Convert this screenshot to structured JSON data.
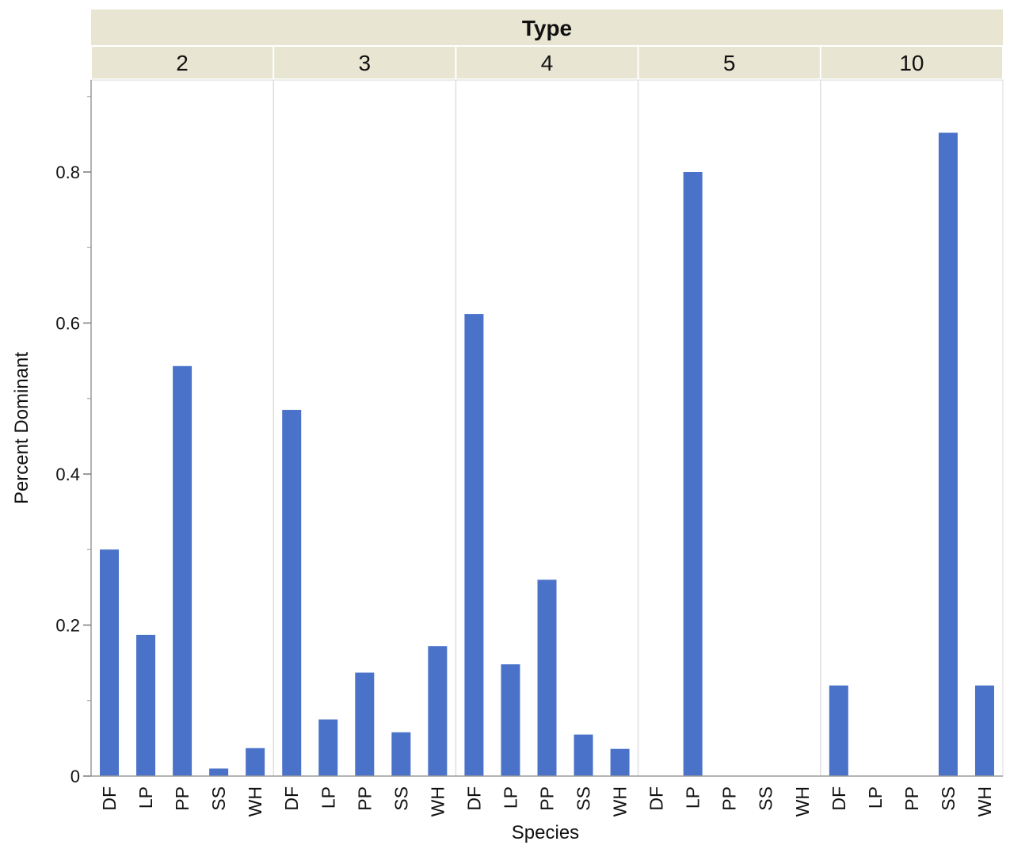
{
  "chart_data": {
    "type": "bar",
    "group_title": "Type",
    "xlabel": "Species",
    "ylabel": "Percent Dominant",
    "ylim": [
      0,
      0.9
    ],
    "yticks": [
      "0",
      "0.2",
      "0.4",
      "0.6",
      "0.8"
    ],
    "yticks_values": [
      0,
      0.2,
      0.4,
      0.6,
      0.8
    ],
    "categories": [
      "DF",
      "LP",
      "PP",
      "SS",
      "WH"
    ],
    "bar_color": "#4a72c8",
    "header_color": "#e8e5d2",
    "panels": [
      {
        "label": "2",
        "values": [
          0.3,
          0.187,
          0.543,
          0.01,
          0.037
        ]
      },
      {
        "label": "3",
        "values": [
          0.485,
          0.075,
          0.137,
          0.058,
          0.172
        ]
      },
      {
        "label": "4",
        "values": [
          0.612,
          0.148,
          0.26,
          0.055,
          0.036
        ]
      },
      {
        "label": "5",
        "values": [
          0,
          0.8,
          0,
          0,
          0
        ]
      },
      {
        "label": "10",
        "values": [
          0.12,
          0,
          0,
          0.852,
          0.12
        ]
      }
    ],
    "grid": false,
    "legend": "none"
  }
}
